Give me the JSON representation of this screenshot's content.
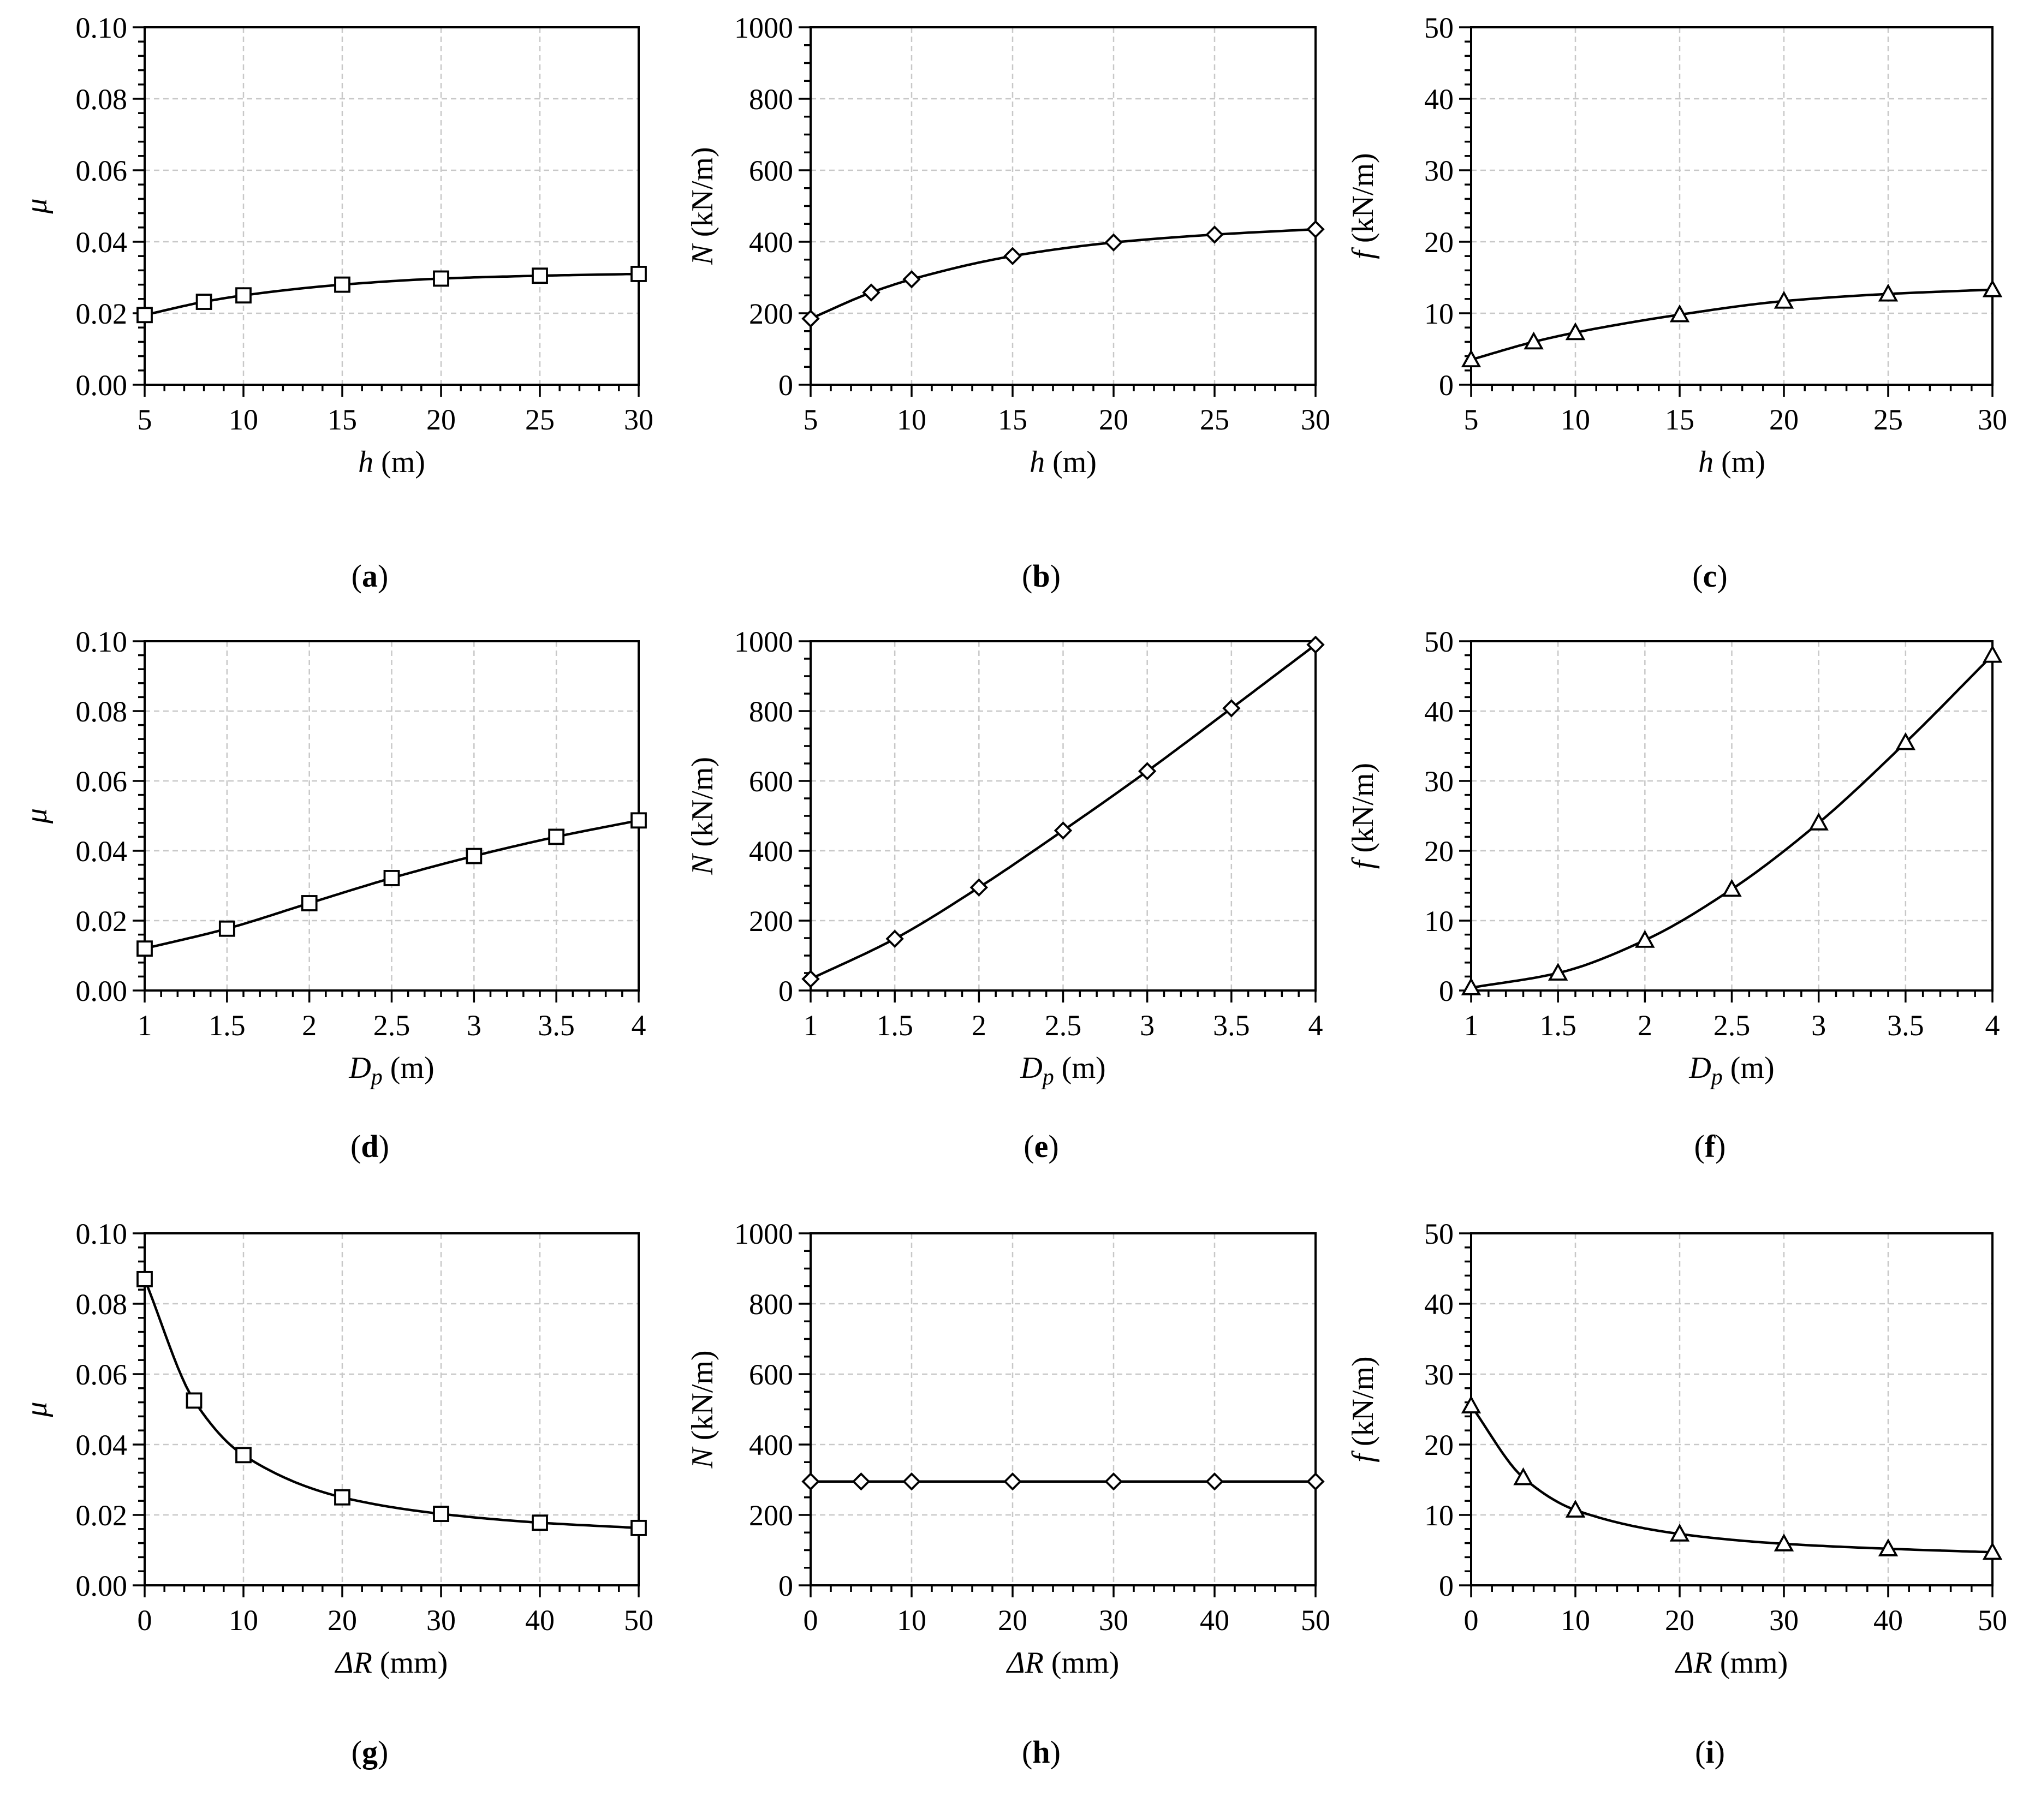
{
  "figure_title": "",
  "chart_data": [
    {
      "id": "a",
      "type": "line",
      "panel_label": "(a)",
      "marker": "square",
      "xlabel_var": "h",
      "xlabel_unit": " (m)",
      "ylabel_var": "μ",
      "ylabel_unit": "",
      "x": [
        5,
        8,
        10,
        15,
        20,
        25,
        30
      ],
      "y": [
        0.0195,
        0.0232,
        0.025,
        0.028,
        0.0297,
        0.0305,
        0.031
      ],
      "xlim": [
        5,
        30
      ],
      "ylim": [
        0,
        0.1
      ],
      "xticks": [
        5,
        10,
        15,
        20,
        25,
        30
      ],
      "xtick_labels": [
        "5",
        "10",
        "15",
        "20",
        "25",
        "30"
      ],
      "yticks": [
        0,
        0.02,
        0.04,
        0.06,
        0.08,
        0.1
      ],
      "ytick_labels": [
        "0.00",
        "0.02",
        "0.04",
        "0.06",
        "0.08",
        "0.10"
      ],
      "xminor": 5,
      "yminor": 5,
      "grid": true
    },
    {
      "id": "b",
      "type": "line",
      "panel_label": "(b)",
      "marker": "diamond",
      "xlabel_var": "h",
      "xlabel_unit": " (m)",
      "ylabel_var": "N",
      "ylabel_unit": " (kN/m)",
      "x": [
        5,
        8,
        10,
        15,
        20,
        25,
        30
      ],
      "y": [
        185,
        258,
        295,
        360,
        398,
        420,
        435
      ],
      "xlim": [
        5,
        30
      ],
      "ylim": [
        0,
        1000
      ],
      "xticks": [
        5,
        10,
        15,
        20,
        25,
        30
      ],
      "xtick_labels": [
        "5",
        "10",
        "15",
        "20",
        "25",
        "30"
      ],
      "yticks": [
        0,
        200,
        400,
        600,
        800,
        1000
      ],
      "ytick_labels": [
        "0",
        "200",
        "400",
        "600",
        "800",
        "1000"
      ],
      "xminor": 5,
      "yminor": 4,
      "grid": true
    },
    {
      "id": "c",
      "type": "line",
      "panel_label": "(c)",
      "marker": "triangle",
      "xlabel_var": "h",
      "xlabel_unit": " (m)",
      "ylabel_var": "f",
      "ylabel_unit": " (kN/m)",
      "x": [
        5,
        8,
        10,
        15,
        20,
        25,
        30
      ],
      "y": [
        3.5,
        6.0,
        7.3,
        9.8,
        11.7,
        12.7,
        13.3
      ],
      "xlim": [
        5,
        30
      ],
      "ylim": [
        0,
        50
      ],
      "xticks": [
        5,
        10,
        15,
        20,
        25,
        30
      ],
      "xtick_labels": [
        "5",
        "10",
        "15",
        "20",
        "25",
        "30"
      ],
      "yticks": [
        0,
        10,
        20,
        30,
        40,
        50
      ],
      "ytick_labels": [
        "0",
        "10",
        "20",
        "30",
        "40",
        "50"
      ],
      "xminor": 5,
      "yminor": 5,
      "grid": true
    },
    {
      "id": "d",
      "type": "line",
      "panel_label": "(d)",
      "marker": "square",
      "xlabel_var": "D",
      "xlabel_sub": "p",
      "xlabel_unit": " (m)",
      "ylabel_var": "μ",
      "ylabel_unit": "",
      "x": [
        1,
        1.5,
        2,
        2.5,
        3,
        3.5,
        4
      ],
      "y": [
        0.012,
        0.0177,
        0.025,
        0.0322,
        0.0385,
        0.044,
        0.0487
      ],
      "xlim": [
        1,
        4
      ],
      "ylim": [
        0,
        0.1
      ],
      "xticks": [
        1,
        1.5,
        2,
        2.5,
        3,
        3.5,
        4
      ],
      "xtick_labels": [
        "1",
        "1.5",
        "2",
        "2.5",
        "3",
        "3.5",
        "4"
      ],
      "yticks": [
        0,
        0.02,
        0.04,
        0.06,
        0.08,
        0.1
      ],
      "ytick_labels": [
        "0.00",
        "0.02",
        "0.04",
        "0.06",
        "0.08",
        "0.10"
      ],
      "xminor": 5,
      "yminor": 5,
      "grid": true
    },
    {
      "id": "e",
      "type": "line",
      "panel_label": "(e)",
      "marker": "diamond",
      "xlabel_var": "D",
      "xlabel_sub": "p",
      "xlabel_unit": " (m)",
      "ylabel_var": "N",
      "ylabel_unit": " (kN/m)",
      "x": [
        1,
        1.5,
        2,
        2.5,
        3,
        3.5,
        4
      ],
      "y": [
        33,
        148,
        295,
        458,
        628,
        808,
        990
      ],
      "xlim": [
        1,
        4
      ],
      "ylim": [
        0,
        1000
      ],
      "xticks": [
        1,
        1.5,
        2,
        2.5,
        3,
        3.5,
        4
      ],
      "xtick_labels": [
        "1",
        "1.5",
        "2",
        "2.5",
        "3",
        "3.5",
        "4"
      ],
      "yticks": [
        0,
        200,
        400,
        600,
        800,
        1000
      ],
      "ytick_labels": [
        "0",
        "200",
        "400",
        "600",
        "800",
        "1000"
      ],
      "xminor": 5,
      "yminor": 4,
      "grid": true
    },
    {
      "id": "f",
      "type": "line",
      "panel_label": "(f)",
      "marker": "triangle",
      "xlabel_var": "D",
      "xlabel_sub": "p",
      "xlabel_unit": " (m)",
      "ylabel_var": "f",
      "ylabel_unit": " (kN/m)",
      "x": [
        1,
        1.5,
        2,
        2.5,
        3,
        3.5,
        4
      ],
      "y": [
        0.4,
        2.5,
        7.2,
        14.5,
        24.0,
        35.5,
        48.0
      ],
      "xlim": [
        1,
        4
      ],
      "ylim": [
        0,
        50
      ],
      "xticks": [
        1,
        1.5,
        2,
        2.5,
        3,
        3.5,
        4
      ],
      "xtick_labels": [
        "1",
        "1.5",
        "2",
        "2.5",
        "3",
        "3.5",
        "4"
      ],
      "yticks": [
        0,
        10,
        20,
        30,
        40,
        50
      ],
      "ytick_labels": [
        "0",
        "10",
        "20",
        "30",
        "40",
        "50"
      ],
      "xminor": 5,
      "yminor": 5,
      "grid": true
    },
    {
      "id": "g",
      "type": "line",
      "panel_label": "(g)",
      "marker": "square",
      "xlabel_var": "ΔR",
      "xlabel_unit": " (mm)",
      "ylabel_var": "μ",
      "ylabel_unit": "",
      "x": [
        0,
        5,
        10,
        20,
        30,
        40,
        50
      ],
      "y": [
        0.087,
        0.0525,
        0.037,
        0.025,
        0.0203,
        0.0178,
        0.0163
      ],
      "xlim": [
        0,
        50
      ],
      "ylim": [
        0,
        0.1
      ],
      "xticks": [
        0,
        10,
        20,
        30,
        40,
        50
      ],
      "xtick_labels": [
        "0",
        "10",
        "20",
        "30",
        "40",
        "50"
      ],
      "yticks": [
        0,
        0.02,
        0.04,
        0.06,
        0.08,
        0.1
      ],
      "ytick_labels": [
        "0.00",
        "0.02",
        "0.04",
        "0.06",
        "0.08",
        "0.10"
      ],
      "xminor": 5,
      "yminor": 5,
      "grid": true
    },
    {
      "id": "h",
      "type": "line",
      "panel_label": "(h)",
      "marker": "diamond",
      "xlabel_var": "ΔR",
      "xlabel_unit": " (mm)",
      "ylabel_var": "N",
      "ylabel_unit": " (kN/m)",
      "x": [
        0,
        5,
        10,
        20,
        30,
        40,
        50
      ],
      "y": [
        295,
        295,
        295,
        295,
        295,
        295,
        295
      ],
      "xlim": [
        0,
        50
      ],
      "ylim": [
        0,
        1000
      ],
      "xticks": [
        0,
        10,
        20,
        30,
        40,
        50
      ],
      "xtick_labels": [
        "0",
        "10",
        "20",
        "30",
        "40",
        "50"
      ],
      "yticks": [
        0,
        200,
        400,
        600,
        800,
        1000
      ],
      "ytick_labels": [
        "0",
        "200",
        "400",
        "600",
        "800",
        "1000"
      ],
      "xminor": 5,
      "yminor": 4,
      "grid": true
    },
    {
      "id": "i",
      "type": "line",
      "panel_label": "(i)",
      "marker": "triangle",
      "xlabel_var": "ΔR",
      "xlabel_unit": " (mm)",
      "ylabel_var": "f",
      "ylabel_unit": " (kN/m)",
      "x": [
        0,
        5,
        10,
        20,
        30,
        40,
        50
      ],
      "y": [
        25.5,
        15.3,
        10.7,
        7.3,
        5.9,
        5.2,
        4.7
      ],
      "xlim": [
        0,
        50
      ],
      "ylim": [
        0,
        50
      ],
      "xticks": [
        0,
        10,
        20,
        30,
        40,
        50
      ],
      "xtick_labels": [
        "0",
        "10",
        "20",
        "30",
        "40",
        "50"
      ],
      "yticks": [
        0,
        10,
        20,
        30,
        40,
        50
      ],
      "ytick_labels": [
        "0",
        "10",
        "20",
        "30",
        "40",
        "50"
      ],
      "xminor": 5,
      "yminor": 5,
      "grid": true
    }
  ]
}
